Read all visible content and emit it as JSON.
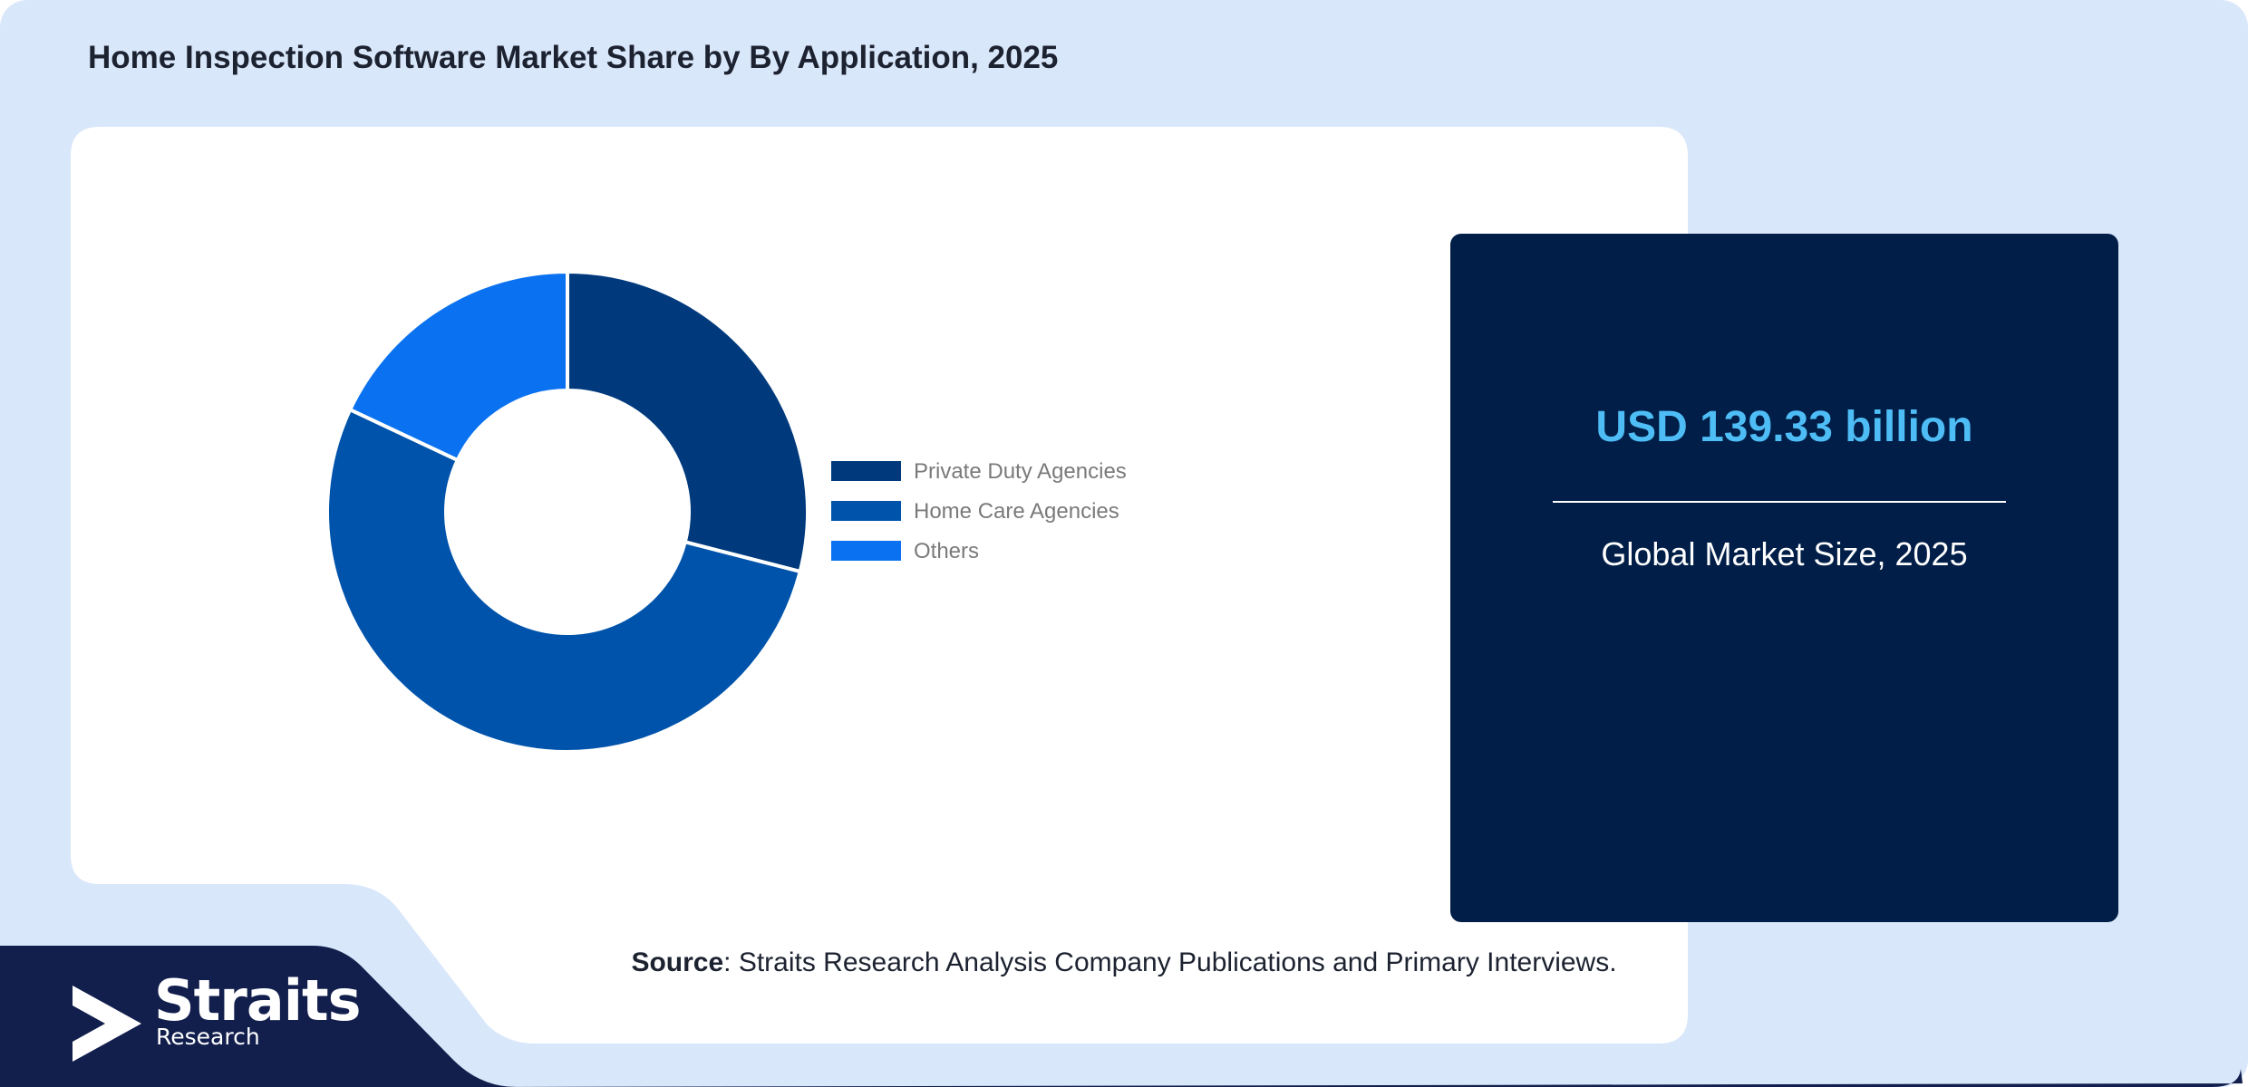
{
  "header": {
    "title": "Home Inspection Software Market Share by By Application, 2025"
  },
  "chart_data": {
    "type": "pie",
    "donut": true,
    "categories": [
      "Private Duty Agencies",
      "Home Care Agencies",
      "Others"
    ],
    "values": [
      29,
      53,
      18
    ],
    "colors": [
      "#003a7d",
      "#0053ab",
      "#0a72f0"
    ],
    "legend_position": "right"
  },
  "market": {
    "value": "USD 139.33 billion",
    "caption": "Global Market Size, 2025"
  },
  "source": {
    "label": "Source",
    "text": ": Straits Research Analysis Company Publications and Primary Interviews."
  },
  "brand": {
    "name": "Straits",
    "sub": "Research"
  },
  "colors": {
    "page_background": "#d9e7fa",
    "card_background": "#ffffff",
    "market_card": "#001e47",
    "market_value": "#4ebcf5",
    "footer_band": "#121f4d"
  }
}
